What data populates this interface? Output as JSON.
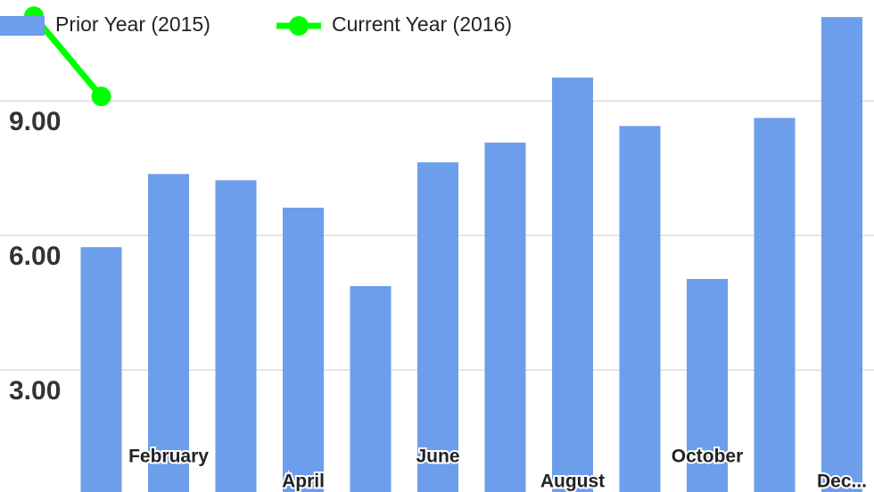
{
  "chart_data": {
    "type": "bar",
    "categories": [
      null,
      null,
      "February",
      null,
      "April",
      null,
      "June",
      null,
      "August",
      null,
      "October",
      null,
      "Dec..."
    ],
    "series": [
      {
        "name": "Prior Year (2015)",
        "type": "bar",
        "color": "#6d9eeb",
        "values": [
          null,
          5.74,
          7.37,
          7.23,
          6.62,
          4.87,
          7.63,
          8.07,
          9.52,
          8.44,
          5.03,
          8.62,
          10.87
        ]
      },
      {
        "name": "Current Year (2016)",
        "type": "line",
        "color": "#00ff00",
        "values": [
          10.89,
          9.1,
          null,
          null,
          null,
          null,
          null,
          null,
          null,
          null,
          null,
          null,
          null
        ]
      }
    ],
    "ylim": [
      0.28,
      11.25
    ],
    "yticks": [
      {
        "value": 3,
        "label": "3.00"
      },
      {
        "value": 6,
        "label": "6.00"
      },
      {
        "value": 9,
        "label": "9.00"
      }
    ],
    "grid": true
  }
}
